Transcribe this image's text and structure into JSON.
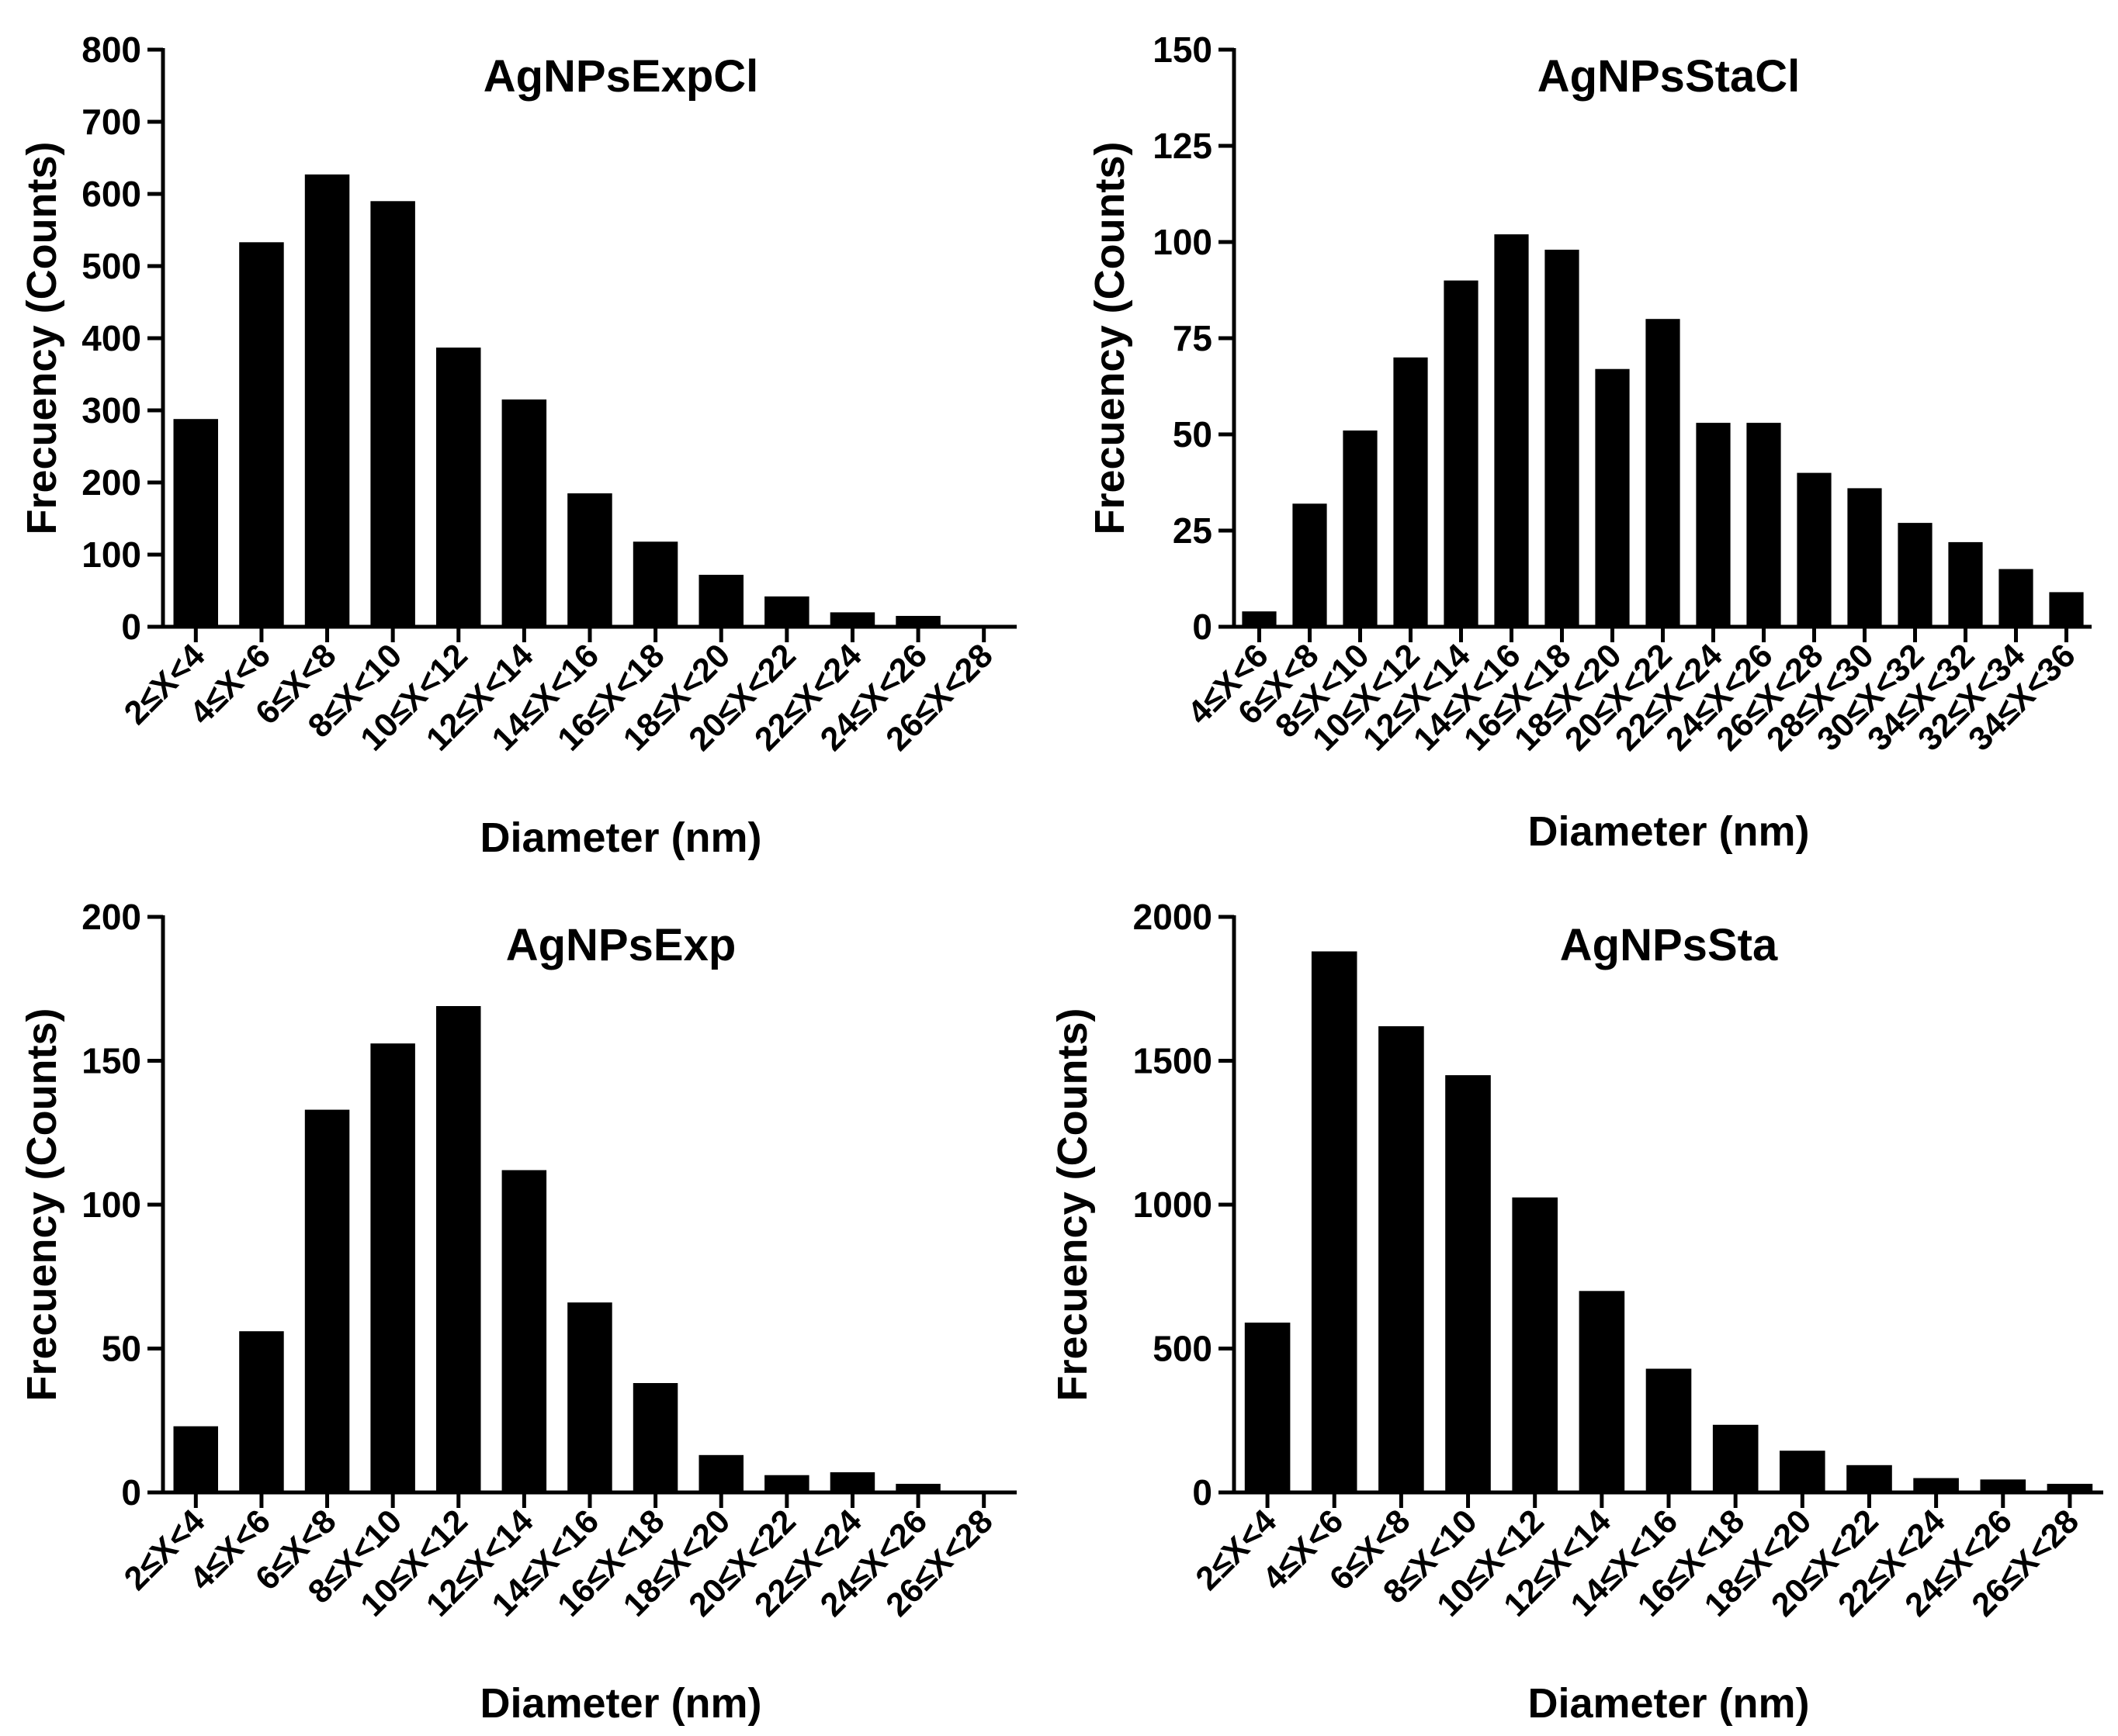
{
  "chart_data": [
    {
      "type": "bar",
      "title": "AgNPsExpCl",
      "xlabel": "Diameter (nm)",
      "ylabel": "Frecuency (Counts)",
      "ylim": [
        0,
        800
      ],
      "yticks": [
        0,
        100,
        200,
        300,
        400,
        500,
        600,
        700,
        800
      ],
      "categories": [
        "2≤X<4",
        "4≤X<6",
        "6≤X<8",
        "8≤X<10",
        "10≤X<12",
        "12≤X<14",
        "14≤X<16",
        "16≤X<18",
        "18≤X<20",
        "20≤X<22",
        "22≤X<24",
        "24≤X<26",
        "26≤X<28"
      ],
      "values": [
        288,
        533,
        627,
        590,
        387,
        315,
        185,
        118,
        72,
        42,
        20,
        15,
        0
      ],
      "color": "#000000"
    },
    {
      "type": "bar",
      "title": "AgNPsStaCl",
      "xlabel": "Diameter (nm)",
      "ylabel": "Frecuency (Counts)",
      "ylim": [
        0,
        150
      ],
      "yticks": [
        0,
        25,
        50,
        75,
        100,
        125,
        150
      ],
      "categories": [
        "4≤X<6",
        "6≤X<8",
        "8≤X<10",
        "10≤X<12",
        "12≤X<14",
        "14≤X<16",
        "16≤X<18",
        "18≤X<20",
        "20≤X<22",
        "22≤X<24",
        "24≤X<26",
        "26≤X<28",
        "28≤X<30",
        "30≤X<32",
        "34≤X<32",
        "32≤X<34",
        "34≤X<36"
      ],
      "values": [
        4,
        32,
        51,
        70,
        90,
        102,
        98,
        67,
        80,
        53,
        53,
        40,
        36,
        27,
        22,
        15,
        9
      ],
      "color": "#000000"
    },
    {
      "type": "bar",
      "title": "AgNPsExp",
      "xlabel": "Diameter (nm)",
      "ylabel": "Frecuency (Counts)",
      "ylim": [
        0,
        200
      ],
      "yticks": [
        0,
        50,
        100,
        150,
        200
      ],
      "categories": [
        "2≤X<4",
        "4≤X<6",
        "6≤X<8",
        "8≤X<10",
        "10≤X<12",
        "12≤X<14",
        "14≤X<16",
        "16≤X<18",
        "18≤X<20",
        "20≤X<22",
        "22≤X<24",
        "24≤X<26",
        "26≤X<28"
      ],
      "values": [
        23,
        56,
        133,
        156,
        169,
        112,
        66,
        38,
        13,
        6,
        7,
        3,
        0
      ],
      "color": "#000000"
    },
    {
      "type": "bar",
      "title": "AgNPsSta",
      "xlabel": "Diameter (nm)",
      "ylabel": "Frecuency (Counts)",
      "ylim": [
        0,
        2000
      ],
      "yticks": [
        0,
        500,
        1000,
        1500,
        2000
      ],
      "categories": [
        "2≤X<4",
        "4≤X<6",
        "6≤X<8",
        "8≤X<10",
        "10≤X<12",
        "12≤X<14",
        "14≤X<16",
        "16≤X<18",
        "18≤X<20",
        "20≤X<22",
        "22≤X<24",
        "24≤X<26",
        "26≤X<28"
      ],
      "values": [
        590,
        1880,
        1620,
        1450,
        1025,
        700,
        430,
        235,
        145,
        95,
        50,
        45,
        30
      ],
      "color": "#000000"
    }
  ]
}
